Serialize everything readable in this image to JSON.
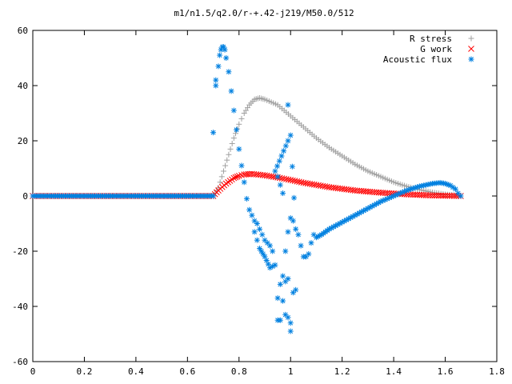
{
  "chart_data": {
    "type": "scatter",
    "title": "m1/n1.5/q2.0/r-+.42-j219/M50.0/512",
    "xlim": [
      0,
      1.8
    ],
    "ylim": [
      -60,
      60
    ],
    "xticks": [
      "0",
      "0.2",
      "0.4",
      "0.6",
      "0.8",
      "1",
      "1.2",
      "1.4",
      "1.6",
      "1.8"
    ],
    "yticks": [
      "60",
      "40",
      "20",
      "0",
      "-20",
      "-40",
      "-60"
    ],
    "legend_position": "top-right",
    "series": [
      {
        "name": "R stress",
        "marker": "plus",
        "color": "#a0a0a0",
        "points": [
          [
            0.0,
            0
          ],
          [
            0.35,
            0
          ],
          [
            0.7,
            0
          ],
          [
            0.72,
            3
          ],
          [
            0.74,
            9
          ],
          [
            0.76,
            15
          ],
          [
            0.78,
            21
          ],
          [
            0.8,
            26
          ],
          [
            0.82,
            30
          ],
          [
            0.84,
            33
          ],
          [
            0.86,
            35
          ],
          [
            0.88,
            35.5
          ],
          [
            0.9,
            35
          ],
          [
            0.95,
            33
          ],
          [
            1.0,
            29
          ],
          [
            1.05,
            25
          ],
          [
            1.1,
            21
          ],
          [
            1.15,
            17.5
          ],
          [
            1.2,
            14.5
          ],
          [
            1.25,
            11.5
          ],
          [
            1.3,
            9
          ],
          [
            1.35,
            7
          ],
          [
            1.4,
            5
          ],
          [
            1.45,
            3.5
          ],
          [
            1.5,
            2.3
          ],
          [
            1.55,
            1.3
          ],
          [
            1.6,
            0.6
          ],
          [
            1.65,
            0.2
          ],
          [
            1.66,
            0
          ]
        ]
      },
      {
        "name": "G work",
        "marker": "cross",
        "color": "#ff0000",
        "points": [
          [
            0.0,
            0
          ],
          [
            0.35,
            0
          ],
          [
            0.7,
            0
          ],
          [
            0.72,
            2
          ],
          [
            0.75,
            4.5
          ],
          [
            0.78,
            6.5
          ],
          [
            0.8,
            7.3
          ],
          [
            0.82,
            7.8
          ],
          [
            0.85,
            8
          ],
          [
            0.9,
            7.5
          ],
          [
            0.95,
            6.7
          ],
          [
            1.0,
            5.8
          ],
          [
            1.05,
            4.8
          ],
          [
            1.1,
            4
          ],
          [
            1.15,
            3.2
          ],
          [
            1.2,
            2.6
          ],
          [
            1.25,
            2
          ],
          [
            1.3,
            1.6
          ],
          [
            1.35,
            1.2
          ],
          [
            1.4,
            0.9
          ],
          [
            1.45,
            0.6
          ],
          [
            1.5,
            0.4
          ],
          [
            1.55,
            0.2
          ],
          [
            1.6,
            0.1
          ],
          [
            1.66,
            0
          ]
        ]
      },
      {
        "name": "Acoustic flux",
        "marker": "star",
        "color": "#0080e0",
        "points": [
          [
            0.0,
            0
          ],
          [
            0.35,
            0
          ],
          [
            0.7,
            0
          ],
          [
            0.7,
            23
          ],
          [
            0.71,
            40
          ],
          [
            0.71,
            42
          ],
          [
            0.72,
            47
          ],
          [
            0.725,
            51
          ],
          [
            0.73,
            53
          ],
          [
            0.735,
            54
          ],
          [
            0.74,
            54
          ],
          [
            0.745,
            53
          ],
          [
            0.75,
            50
          ],
          [
            0.76,
            45
          ],
          [
            0.77,
            38
          ],
          [
            0.78,
            31
          ],
          [
            0.79,
            24
          ],
          [
            0.8,
            17
          ],
          [
            0.81,
            11
          ],
          [
            0.82,
            5
          ],
          [
            0.83,
            -1
          ],
          [
            0.84,
            -5
          ],
          [
            0.85,
            -7
          ],
          [
            0.86,
            -9
          ],
          [
            0.87,
            -10
          ],
          [
            0.88,
            -12
          ],
          [
            0.89,
            -14
          ],
          [
            0.9,
            -16
          ],
          [
            0.91,
            -17
          ],
          [
            0.92,
            -18
          ],
          [
            0.93,
            -20
          ],
          [
            0.86,
            -13
          ],
          [
            0.87,
            -16
          ],
          [
            0.88,
            -19
          ],
          [
            0.9,
            -22
          ],
          [
            0.92,
            -26
          ],
          [
            0.94,
            -25
          ],
          [
            0.95,
            -37
          ],
          [
            0.95,
            -45
          ],
          [
            0.96,
            -45
          ],
          [
            0.97,
            -38
          ],
          [
            0.98,
            -31
          ],
          [
            0.98,
            -43
          ],
          [
            0.99,
            -30
          ],
          [
            0.99,
            -44
          ],
          [
            1.0,
            -46
          ],
          [
            1.0,
            -49
          ],
          [
            1.01,
            -35
          ],
          [
            1.02,
            -34
          ],
          [
            0.96,
            -32
          ],
          [
            0.97,
            -29
          ],
          [
            0.98,
            -20
          ],
          [
            0.99,
            -13
          ],
          [
            1.0,
            -8
          ],
          [
            1.01,
            -9
          ],
          [
            0.95,
            7
          ],
          [
            0.96,
            4
          ],
          [
            0.97,
            1
          ],
          [
            0.94,
            9
          ],
          [
            0.99,
            20
          ],
          [
            0.99,
            33
          ],
          [
            1.0,
            22
          ],
          [
            1.02,
            -12
          ],
          [
            1.03,
            -14
          ],
          [
            1.04,
            -18
          ],
          [
            1.05,
            -22
          ],
          [
            1.06,
            -22
          ],
          [
            1.07,
            -21
          ],
          [
            1.08,
            -17
          ],
          [
            1.09,
            -14
          ],
          [
            1.1,
            -15
          ],
          [
            1.12,
            -14
          ],
          [
            1.15,
            -12
          ],
          [
            1.2,
            -9.5
          ],
          [
            1.25,
            -7
          ],
          [
            1.3,
            -4.5
          ],
          [
            1.35,
            -2
          ],
          [
            1.4,
            0
          ],
          [
            1.45,
            2
          ],
          [
            1.5,
            3.5
          ],
          [
            1.55,
            4.5
          ],
          [
            1.58,
            4.8
          ],
          [
            1.6,
            4.5
          ],
          [
            1.62,
            3.8
          ],
          [
            1.64,
            2.5
          ],
          [
            1.65,
            1
          ],
          [
            1.66,
            0
          ]
        ]
      }
    ]
  }
}
